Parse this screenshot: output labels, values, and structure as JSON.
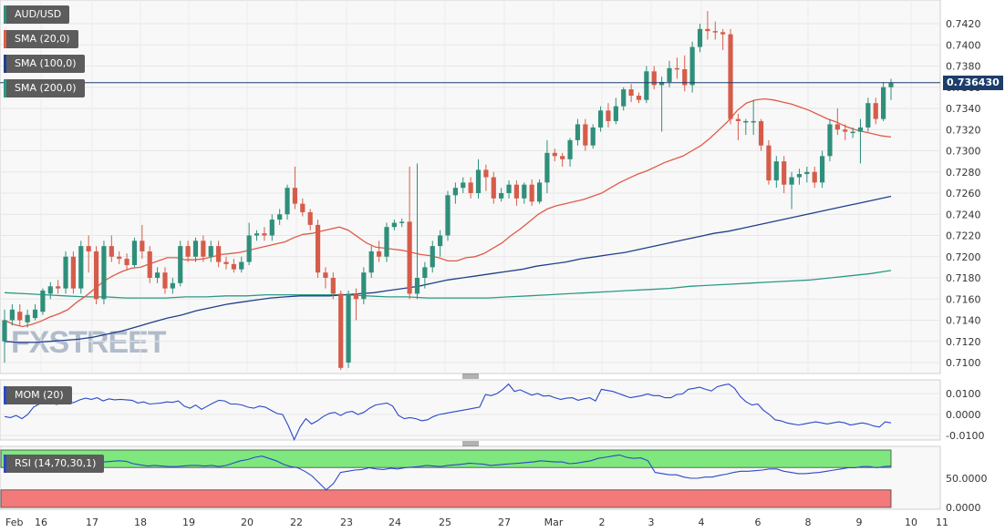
{
  "labels": {
    "pair": "AUD/USD",
    "sma20": "SMA (20,0)",
    "sma100": "SMA (100,0)",
    "sma200": "SMA (200,0)",
    "mom": "MOM (20)",
    "rsi": "RSI (14,70,30,1)",
    "price_tag": "0.736430",
    "watermark": "FXSTREET"
  },
  "colors": {
    "up": "#2f8f7a",
    "down": "#d65c4a",
    "sma20": "#e05a48",
    "sma100": "#1f3f8a",
    "sma200": "#2a9a84",
    "mom_line": "#2b48c8",
    "rsi_line": "#2b48c8",
    "rsi_overbought": "#7ee87e",
    "rsi_oversold": "#f27a7a",
    "price_line": "#1d3d6b"
  },
  "chart_data": [
    {
      "type": "candlestick",
      "title": "AUD/USD",
      "current_price": 0.73643,
      "y_ticks": [
        "0.7100",
        "0.7120",
        "0.7140",
        "0.7160",
        "0.7180",
        "0.7200",
        "0.7220",
        "0.7240",
        "0.7260",
        "0.7280",
        "0.7300",
        "0.7320",
        "0.7340",
        "0.7360",
        "0.7380",
        "0.7400",
        "0.7420"
      ],
      "ylim": [
        0.7095,
        0.7432
      ],
      "x_labels": [
        "Feb",
        "16",
        "17",
        "18",
        "19",
        "20",
        "22",
        "23",
        "24",
        "25",
        "27",
        "Mar",
        "2",
        "3",
        "4",
        "6",
        "8",
        "9",
        "10",
        "11"
      ],
      "candles": [
        [
          0.712,
          0.714,
          0.71,
          0.715
        ],
        [
          0.714,
          0.715,
          0.7135,
          0.7155
        ],
        [
          0.7148,
          0.714,
          0.7135,
          0.7155
        ],
        [
          0.7138,
          0.7145,
          0.7133,
          0.715
        ],
        [
          0.7142,
          0.715,
          0.714,
          0.7155
        ],
        [
          0.7148,
          0.7168,
          0.7145,
          0.717
        ],
        [
          0.7165,
          0.7172,
          0.716,
          0.7176
        ],
        [
          0.7172,
          0.717,
          0.7165,
          0.7178
        ],
        [
          0.717,
          0.72,
          0.7165,
          0.7205
        ],
        [
          0.72,
          0.717,
          0.7165,
          0.7205
        ],
        [
          0.717,
          0.721,
          0.7165,
          0.7215
        ],
        [
          0.721,
          0.7205,
          0.7185,
          0.722
        ],
        [
          0.7205,
          0.716,
          0.7155,
          0.721
        ],
        [
          0.716,
          0.721,
          0.7155,
          0.7215
        ],
        [
          0.721,
          0.72,
          0.7195,
          0.722
        ],
        [
          0.72,
          0.7198,
          0.7193,
          0.7205
        ],
        [
          0.7198,
          0.7192,
          0.7187,
          0.7203
        ],
        [
          0.7192,
          0.7215,
          0.719,
          0.7218
        ],
        [
          0.7215,
          0.7205,
          0.7198,
          0.723
        ],
        [
          0.7205,
          0.718,
          0.7175,
          0.721
        ],
        [
          0.718,
          0.7185,
          0.7175,
          0.719
        ],
        [
          0.7185,
          0.717,
          0.7165,
          0.719
        ],
        [
          0.717,
          0.7175,
          0.7165,
          0.718
        ],
        [
          0.7175,
          0.721,
          0.7172,
          0.7215
        ],
        [
          0.721,
          0.72,
          0.7195,
          0.7215
        ],
        [
          0.72,
          0.7215,
          0.7195,
          0.7218
        ],
        [
          0.7215,
          0.72,
          0.7195,
          0.722
        ],
        [
          0.72,
          0.721,
          0.7195,
          0.7215
        ],
        [
          0.721,
          0.7195,
          0.719,
          0.7215
        ],
        [
          0.7195,
          0.7193,
          0.7188,
          0.72
        ],
        [
          0.7193,
          0.7188,
          0.7185,
          0.7198
        ],
        [
          0.7188,
          0.7195,
          0.7185,
          0.72
        ],
        [
          0.7195,
          0.722,
          0.7192,
          0.7232
        ],
        [
          0.722,
          0.7222,
          0.7215,
          0.7225
        ],
        [
          0.7222,
          0.722,
          0.7215,
          0.7228
        ],
        [
          0.722,
          0.7235,
          0.7215,
          0.724
        ],
        [
          0.7235,
          0.724,
          0.723,
          0.7245
        ],
        [
          0.724,
          0.7265,
          0.7235,
          0.7268
        ],
        [
          0.7265,
          0.725,
          0.7245,
          0.7285
        ],
        [
          0.725,
          0.7242,
          0.7238,
          0.7255
        ],
        [
          0.7242,
          0.723,
          0.7225,
          0.7245
        ],
        [
          0.723,
          0.7185,
          0.718,
          0.7235
        ],
        [
          0.7185,
          0.718,
          0.717,
          0.719
        ],
        [
          0.718,
          0.7165,
          0.716,
          0.7185
        ],
        [
          0.7165,
          0.7095,
          0.7093,
          0.7168
        ],
        [
          0.71,
          0.7165,
          0.7095,
          0.7168
        ],
        [
          0.7165,
          0.716,
          0.714,
          0.717
        ],
        [
          0.716,
          0.7185,
          0.7155,
          0.719
        ],
        [
          0.7185,
          0.7205,
          0.718,
          0.721
        ],
        [
          0.7205,
          0.72,
          0.7195,
          0.7215
        ],
        [
          0.72,
          0.7228,
          0.7195,
          0.7232
        ],
        [
          0.7228,
          0.7232,
          0.7225,
          0.7235
        ],
        [
          0.7232,
          0.7233,
          0.7228,
          0.7236
        ],
        [
          0.7233,
          0.7165,
          0.716,
          0.7285
        ],
        [
          0.7165,
          0.718,
          0.716,
          0.7288
        ],
        [
          0.718,
          0.719,
          0.717,
          0.7195
        ],
        [
          0.719,
          0.721,
          0.7185,
          0.7215
        ],
        [
          0.721,
          0.722,
          0.72,
          0.7225
        ],
        [
          0.722,
          0.7258,
          0.7215,
          0.7262
        ],
        [
          0.7258,
          0.7265,
          0.725,
          0.727
        ],
        [
          0.7265,
          0.727,
          0.726,
          0.7275
        ],
        [
          0.727,
          0.726,
          0.7255,
          0.7275
        ],
        [
          0.726,
          0.7282,
          0.7255,
          0.7292
        ],
        [
          0.7282,
          0.7275,
          0.7262,
          0.7287
        ],
        [
          0.7275,
          0.7255,
          0.725,
          0.728
        ],
        [
          0.7255,
          0.726,
          0.7252,
          0.7265
        ],
        [
          0.726,
          0.7268,
          0.7255,
          0.7272
        ],
        [
          0.7268,
          0.7255,
          0.7248,
          0.7272
        ],
        [
          0.7255,
          0.7268,
          0.725,
          0.727
        ],
        [
          0.7268,
          0.7252,
          0.7248,
          0.7273
        ],
        [
          0.7252,
          0.727,
          0.725,
          0.7273
        ],
        [
          0.727,
          0.7298,
          0.726,
          0.731
        ],
        [
          0.7298,
          0.7295,
          0.729,
          0.7302
        ],
        [
          0.7295,
          0.7292,
          0.7285,
          0.7298
        ],
        [
          0.7292,
          0.731,
          0.7285,
          0.7312
        ],
        [
          0.731,
          0.7325,
          0.7305,
          0.733
        ],
        [
          0.7325,
          0.7305,
          0.73,
          0.733
        ],
        [
          0.7305,
          0.7322,
          0.7302,
          0.7325
        ],
        [
          0.7322,
          0.7338,
          0.7318,
          0.7342
        ],
        [
          0.7338,
          0.7328,
          0.7322,
          0.7345
        ],
        [
          0.7328,
          0.7342,
          0.7325,
          0.735
        ],
        [
          0.7342,
          0.7358,
          0.7338,
          0.736
        ],
        [
          0.7358,
          0.7352,
          0.7346,
          0.7363
        ],
        [
          0.7352,
          0.7348,
          0.7345,
          0.7355
        ],
        [
          0.7348,
          0.7375,
          0.7345,
          0.738
        ],
        [
          0.7375,
          0.7362,
          0.7358,
          0.738
        ],
        [
          0.7362,
          0.7365,
          0.7318,
          0.737
        ],
        [
          0.7365,
          0.7378,
          0.736,
          0.7385
        ],
        [
          0.7378,
          0.7377,
          0.7368,
          0.7388
        ],
        [
          0.7377,
          0.7362,
          0.7356,
          0.739
        ],
        [
          0.7362,
          0.7398,
          0.7355,
          0.7403
        ],
        [
          0.7398,
          0.7415,
          0.7393,
          0.742
        ],
        [
          0.7415,
          0.7413,
          0.7405,
          0.7432
        ],
        [
          0.7413,
          0.7412,
          0.7405,
          0.7422
        ],
        [
          0.7412,
          0.741,
          0.7395,
          0.7415
        ],
        [
          0.741,
          0.733,
          0.7325,
          0.7415
        ],
        [
          0.733,
          0.7328,
          0.731,
          0.7335
        ],
        [
          0.7328,
          0.7328,
          0.7315,
          0.733
        ],
        [
          0.7328,
          0.7328,
          0.7315,
          0.7348
        ],
        [
          0.7328,
          0.7305,
          0.73,
          0.733
        ],
        [
          0.7305,
          0.7272,
          0.7268,
          0.731
        ],
        [
          0.7272,
          0.729,
          0.7265,
          0.7295
        ],
        [
          0.729,
          0.7268,
          0.726,
          0.7295
        ],
        [
          0.7268,
          0.7275,
          0.7245,
          0.728
        ],
        [
          0.7275,
          0.7278,
          0.7268,
          0.7283
        ],
        [
          0.7278,
          0.728,
          0.727,
          0.7285
        ],
        [
          0.728,
          0.727,
          0.7265,
          0.7285
        ],
        [
          0.727,
          0.7295,
          0.7265,
          0.73
        ],
        [
          0.7295,
          0.7325,
          0.729,
          0.733
        ],
        [
          0.7325,
          0.732,
          0.7315,
          0.734
        ],
        [
          0.732,
          0.7318,
          0.731,
          0.7325
        ],
        [
          0.7318,
          0.7318,
          0.7312,
          0.7322
        ],
        [
          0.7318,
          0.7322,
          0.7288,
          0.733
        ],
        [
          0.7322,
          0.7345,
          0.7318,
          0.735
        ],
        [
          0.7345,
          0.733,
          0.7325,
          0.735
        ],
        [
          0.733,
          0.736,
          0.7328,
          0.7365
        ],
        [
          0.736,
          0.7364,
          0.7348,
          0.7368
        ]
      ],
      "sma20": [
        0.714,
        0.7136,
        0.7134,
        0.7136,
        0.7139,
        0.7143,
        0.7146,
        0.715,
        0.7157,
        0.7163,
        0.717,
        0.7177,
        0.7182,
        0.7186,
        0.7189,
        0.719,
        0.7193,
        0.7196,
        0.7199,
        0.7199,
        0.7197,
        0.7197,
        0.7198,
        0.72,
        0.7202,
        0.7203,
        0.7204,
        0.7206,
        0.7208,
        0.721,
        0.7212,
        0.7214,
        0.7218,
        0.7221,
        0.7222,
        0.7224,
        0.7226,
        0.7228,
        0.7225,
        0.7219,
        0.7213,
        0.7209,
        0.7208,
        0.7207,
        0.7206,
        0.7204,
        0.7202,
        0.7201,
        0.7199,
        0.7196,
        0.7196,
        0.7199,
        0.72,
        0.7203,
        0.7208,
        0.7213,
        0.722,
        0.7226,
        0.7233,
        0.724,
        0.7245,
        0.7248,
        0.725,
        0.7252,
        0.7254,
        0.7257,
        0.726,
        0.7265,
        0.727,
        0.7274,
        0.7278,
        0.7281,
        0.7285,
        0.7289,
        0.7292,
        0.7295,
        0.73,
        0.7305,
        0.7312,
        0.732,
        0.7328,
        0.7338,
        0.7345,
        0.7348,
        0.7349,
        0.7348,
        0.7346,
        0.7344,
        0.7341,
        0.7338,
        0.7334,
        0.733,
        0.7327,
        0.7323,
        0.732,
        0.7318,
        0.7316,
        0.7314,
        0.7313
      ],
      "sma100": [
        0.712,
        0.7119,
        0.7119,
        0.712,
        0.7121,
        0.7122,
        0.7124,
        0.7127,
        0.713,
        0.7134,
        0.7138,
        0.7142,
        0.7145,
        0.7149,
        0.7152,
        0.7155,
        0.7157,
        0.7159,
        0.7161,
        0.7162,
        0.7163,
        0.7163,
        0.7163,
        0.7164,
        0.7165,
        0.7166,
        0.7168,
        0.717,
        0.7172,
        0.7175,
        0.7178,
        0.718,
        0.7182,
        0.7184,
        0.7186,
        0.7188,
        0.7191,
        0.7193,
        0.7195,
        0.7198,
        0.72,
        0.7202,
        0.7204,
        0.7207,
        0.721,
        0.7213,
        0.7216,
        0.7219,
        0.7222,
        0.7224,
        0.7227,
        0.723,
        0.7233,
        0.7236,
        0.7239,
        0.7242,
        0.7245,
        0.7248,
        0.7251,
        0.7254,
        0.7257
      ],
      "sma200": [
        0.7166,
        0.7165,
        0.7164,
        0.7163,
        0.7162,
        0.7162,
        0.7161,
        0.7161,
        0.7161,
        0.7162,
        0.7162,
        0.7163,
        0.7163,
        0.7164,
        0.7164,
        0.7164,
        0.7164,
        0.7164,
        0.7163,
        0.7162,
        0.7162,
        0.7161,
        0.7161,
        0.7161,
        0.7161,
        0.7162,
        0.7163,
        0.7164,
        0.7165,
        0.7166,
        0.7167,
        0.7168,
        0.7169,
        0.717,
        0.7172,
        0.7173,
        0.7174,
        0.7175,
        0.7176,
        0.7177,
        0.7178,
        0.718,
        0.7182,
        0.7184,
        0.7187
      ]
    },
    {
      "type": "line",
      "title": "MOM (20)",
      "y_ticks": [
        "0.0100",
        "0.0000",
        "-0.0100"
      ],
      "ylim": [
        -0.0135,
        0.016
      ],
      "values": [
        -0.001,
        -0.0015,
        -0.0005,
        -0.002,
        0.0,
        0.0035,
        0.005,
        0.0065,
        0.0055,
        0.0048,
        0.006,
        0.0052,
        0.0058,
        0.007,
        0.0078,
        0.0072,
        0.008,
        0.0065,
        0.0075,
        0.007,
        0.0072,
        0.007,
        0.0068,
        0.0055,
        0.006,
        0.005,
        0.0052,
        0.0055,
        0.006,
        0.0058,
        0.0065,
        0.004,
        0.003,
        0.0045,
        0.0025,
        0.004,
        0.0055,
        0.0068,
        0.0065,
        0.005,
        0.005,
        0.0045,
        0.0035,
        0.003,
        0.004,
        0.0035,
        0.002,
        0.0005,
        0.0,
        -0.0055,
        -0.012,
        -0.006,
        -0.002,
        -0.0045,
        -0.003,
        -0.001,
        0.0005,
        0.001,
        -0.0005,
        0.001,
        0.0015,
        0.0,
        0.001,
        0.003,
        0.0045,
        0.005,
        0.0055,
        0.004,
        -0.0005,
        -0.002,
        -0.0015,
        -0.002,
        -0.003,
        -0.0025,
        -0.001,
        0.0,
        0.0005,
        0.001,
        0.0015,
        0.002,
        0.0025,
        0.003,
        0.0035,
        0.0095,
        0.009,
        0.01,
        0.012,
        0.0145,
        0.011,
        0.0118,
        0.0105,
        0.0092,
        0.01,
        0.0088,
        0.009,
        0.008,
        0.0072,
        0.0078,
        0.008,
        0.0068,
        0.0075,
        0.008,
        0.0065,
        0.012,
        0.0115,
        0.011,
        0.01,
        0.009,
        0.008,
        0.0085,
        0.009,
        0.0098,
        0.009,
        0.009,
        0.008,
        0.008,
        0.0095,
        0.0098,
        0.012,
        0.0125,
        0.013,
        0.012,
        0.0112,
        0.0132,
        0.014,
        0.0145,
        0.0125,
        0.0085,
        0.006,
        0.0045,
        0.005,
        0.002,
        0.0,
        -0.0025,
        -0.003,
        -0.004,
        -0.0045,
        -0.005,
        -0.0045,
        -0.004,
        -0.0035,
        -0.004,
        -0.0045,
        -0.004,
        -0.0035,
        -0.004,
        -0.005,
        -0.0045,
        -0.004,
        -0.0045,
        -0.0055,
        -0.006,
        -0.0035,
        -0.004
      ]
    },
    {
      "type": "line",
      "title": "RSI (14,70,30,1)",
      "y_ticks": [
        "50.0000",
        "0.0000"
      ],
      "ylim": [
        0,
        100
      ],
      "overbought": 70,
      "oversold": 30,
      "values": [
        70,
        70,
        74,
        80,
        82,
        79,
        80,
        86,
        83,
        82,
        83,
        82,
        80,
        80,
        78,
        79,
        80,
        79,
        75,
        73,
        71,
        72,
        71,
        70,
        70,
        71,
        72,
        72,
        71,
        72,
        70,
        72,
        76,
        80,
        82,
        86,
        88,
        84,
        80,
        74,
        70,
        68,
        62,
        54,
        42,
        30,
        41,
        60,
        62,
        64,
        65,
        68,
        66,
        65,
        67,
        66,
        68,
        69,
        70,
        72,
        71,
        70,
        72,
        73,
        74,
        76,
        75,
        74,
        72,
        73,
        74,
        75,
        76,
        77,
        78,
        80,
        79,
        78,
        78,
        75,
        76,
        78,
        80,
        84,
        86,
        88,
        90,
        86,
        84,
        85,
        80,
        60,
        58,
        56,
        56,
        52,
        50,
        50,
        52,
        52,
        55,
        57,
        60,
        62,
        62,
        63,
        64,
        66,
        66,
        62,
        60,
        58,
        58,
        59,
        60,
        62,
        64,
        66,
        68,
        68,
        70,
        70,
        68,
        70,
        71
      ]
    }
  ]
}
